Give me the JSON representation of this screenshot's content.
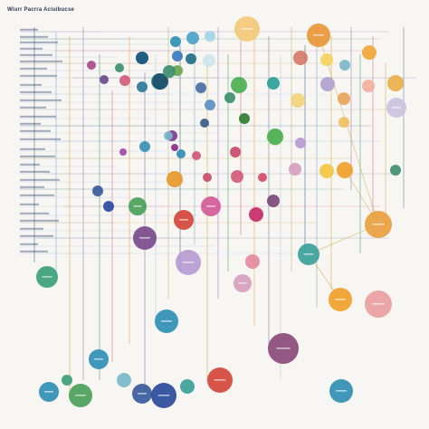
{
  "title": "Wiurr Pacrra Aciuibucse",
  "colors": {
    "background": "#f7f6f3",
    "line_palette": [
      "#1f4e6a",
      "#6aa3c8",
      "#c9a227",
      "#8c6bb1",
      "#3b8f6e",
      "#d25a7e",
      "#e8973a",
      "#5a6b8c",
      "#a9c7e2",
      "#b7a36a"
    ],
    "row_rule": "#c9d6e6"
  },
  "nodes": [
    {
      "id": "n1",
      "color": "#f3c97a"
    },
    {
      "id": "n2",
      "color": "#e8973a"
    },
    {
      "id": "n3",
      "color": "#2f8fb5"
    },
    {
      "id": "n4",
      "color": "#4aa3c9"
    },
    {
      "id": "n5",
      "color": "#a6d4e8"
    },
    {
      "id": "n6",
      "color": "#3b7bbf"
    },
    {
      "id": "n7",
      "color": "#0d4f7a"
    },
    {
      "id": "n8",
      "color": "#1f6f8b"
    },
    {
      "id": "n9",
      "color": "#cfe6ee"
    },
    {
      "id": "n10",
      "color": "#f0a63a"
    },
    {
      "id": "n11",
      "color": "#d77a6a"
    },
    {
      "id": "n12",
      "color": "#f4d35e"
    },
    {
      "id": "n13",
      "color": "#7ab8c9"
    },
    {
      "id": "n14",
      "color": "#a84a8c"
    },
    {
      "id": "n15",
      "color": "#3b8f6e"
    },
    {
      "id": "n16",
      "color": "#2aa198"
    },
    {
      "id": "n17",
      "color": "#6aa84f"
    },
    {
      "id": "n18",
      "color": "#1f4e6a"
    },
    {
      "id": "n19",
      "color": "#4caf50"
    },
    {
      "id": "n20",
      "color": "#e8b04a"
    },
    {
      "id": "n21",
      "color": "#b0a0d0"
    },
    {
      "id": "n22",
      "color": "#f2b0a0"
    },
    {
      "id": "n23",
      "color": "#2aa198"
    },
    {
      "id": "n24",
      "color": "#c9c2e0"
    },
    {
      "id": "n25",
      "color": "#f0d27a"
    },
    {
      "id": "n26",
      "color": "#e8a45a"
    },
    {
      "id": "n27",
      "color": "#3b8f6e"
    },
    {
      "id": "n28",
      "color": "#6a4a8c"
    },
    {
      "id": "n29",
      "color": "#d25a7e"
    },
    {
      "id": "n30",
      "color": "#4a6fa5"
    },
    {
      "id": "n31",
      "color": "#2e7d32"
    },
    {
      "id": "n32",
      "color": "#f4c542"
    },
    {
      "id": "n33",
      "color": "#f0c060"
    },
    {
      "id": "n34",
      "color": "#5a8fc4"
    },
    {
      "id": "n35",
      "color": "#3b5b8c"
    },
    {
      "id": "n36",
      "color": "#c74a6a"
    },
    {
      "id": "n37",
      "color": "#d2567a"
    },
    {
      "id": "n38",
      "color": "#7a3c8c"
    },
    {
      "id": "n39",
      "color": "#8c2a8c"
    },
    {
      "id": "n40",
      "color": "#a04aa0"
    },
    {
      "id": "n41",
      "color": "#d84a6a"
    },
    {
      "id": "n42",
      "color": "#c9e0b0"
    },
    {
      "id": "n43",
      "color": "#b79ad2"
    },
    {
      "id": "n44",
      "color": "#d6a0c0"
    },
    {
      "id": "n45",
      "color": "#f0a02a"
    },
    {
      "id": "n46",
      "color": "#3b8f6e"
    },
    {
      "id": "n47",
      "color": "#e8982a"
    },
    {
      "id": "n48",
      "color": "#d45a9a"
    },
    {
      "id": "n49",
      "color": "#c42a6a"
    },
    {
      "id": "n50",
      "color": "#7a4a7a"
    },
    {
      "id": "n51",
      "color": "#3b8fb5"
    },
    {
      "id": "n52",
      "color": "#7ab8c9"
    },
    {
      "id": "n53",
      "color": "#2f8fb5"
    },
    {
      "id": "n54",
      "color": "#3ba07a"
    },
    {
      "id": "n55",
      "color": "#3a5a9c"
    },
    {
      "id": "n56",
      "color": "#2a4a9c"
    },
    {
      "id": "n57",
      "color": "#4aa05a"
    },
    {
      "id": "n58",
      "color": "#d2473a"
    },
    {
      "id": "n59",
      "color": "#2f8fb5"
    },
    {
      "id": "n60",
      "color": "#7a4a8c"
    },
    {
      "id": "n61",
      "color": "#e8a040"
    },
    {
      "id": "n62",
      "color": "#3ba09a"
    },
    {
      "id": "n63",
      "color": "#e8a0a0"
    }
  ]
}
